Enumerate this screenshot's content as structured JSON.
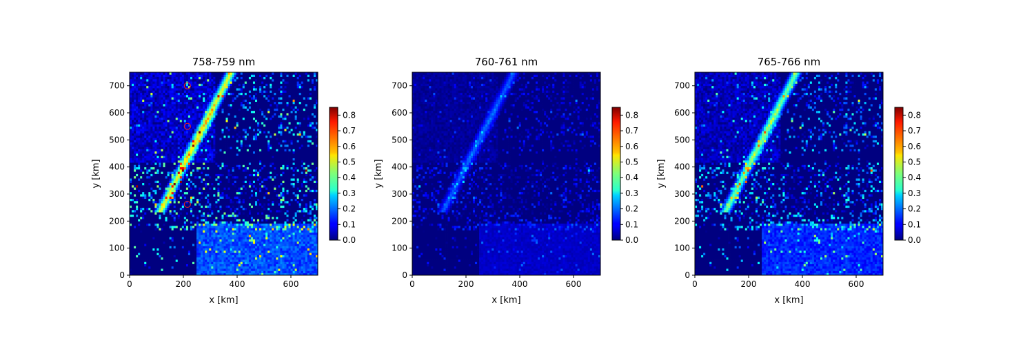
{
  "colormap": "jet",
  "chart_data": [
    {
      "type": "heatmap",
      "title": "758-759 nm",
      "xlabel": "x [km]",
      "ylabel": "y [km]",
      "xlim": [
        0,
        700
      ],
      "ylim": [
        0,
        750
      ],
      "xticks": [
        "0",
        "200",
        "400",
        "600"
      ],
      "yticks": [
        "0",
        "100",
        "200",
        "300",
        "400",
        "500",
        "600",
        "700"
      ],
      "colorbar": {
        "vmin": 0.0,
        "vmax": 0.85,
        "ticks": [
          "0.0",
          "0.1",
          "0.2",
          "0.3",
          "0.4",
          "0.5",
          "0.6",
          "0.7",
          "0.8"
        ]
      },
      "markers": [
        {
          "x": 215,
          "y": 700,
          "color": "#d62728"
        },
        {
          "x": 215,
          "y": 550,
          "color": "#d62728"
        },
        {
          "x": 215,
          "y": 262,
          "color": "#d62728"
        }
      ],
      "intensity": 1.0
    },
    {
      "type": "heatmap",
      "title": "760-761 nm",
      "xlabel": "x [km]",
      "ylabel": "y [km]",
      "xlim": [
        0,
        700
      ],
      "ylim": [
        0,
        750
      ],
      "xticks": [
        "0",
        "200",
        "400",
        "600"
      ],
      "yticks": [
        "0",
        "100",
        "200",
        "300",
        "400",
        "500",
        "600",
        "700"
      ],
      "colorbar": {
        "vmin": 0.0,
        "vmax": 0.85,
        "ticks": [
          "0.0",
          "0.1",
          "0.2",
          "0.3",
          "0.4",
          "0.5",
          "0.6",
          "0.7",
          "0.8"
        ]
      },
      "markers": [],
      "intensity": 0.35
    },
    {
      "type": "heatmap",
      "title": "765-766 nm",
      "xlabel": "x [km]",
      "ylabel": "y [km]",
      "xlim": [
        0,
        700
      ],
      "ylim": [
        0,
        750
      ],
      "xticks": [
        "0",
        "200",
        "400",
        "600"
      ],
      "yticks": [
        "0",
        "100",
        "200",
        "300",
        "400",
        "500",
        "600",
        "700"
      ],
      "colorbar": {
        "vmin": 0.0,
        "vmax": 0.85,
        "ticks": [
          "0.0",
          "0.1",
          "0.2",
          "0.3",
          "0.4",
          "0.5",
          "0.6",
          "0.7",
          "0.8"
        ]
      },
      "markers": [],
      "intensity": 0.8
    }
  ]
}
